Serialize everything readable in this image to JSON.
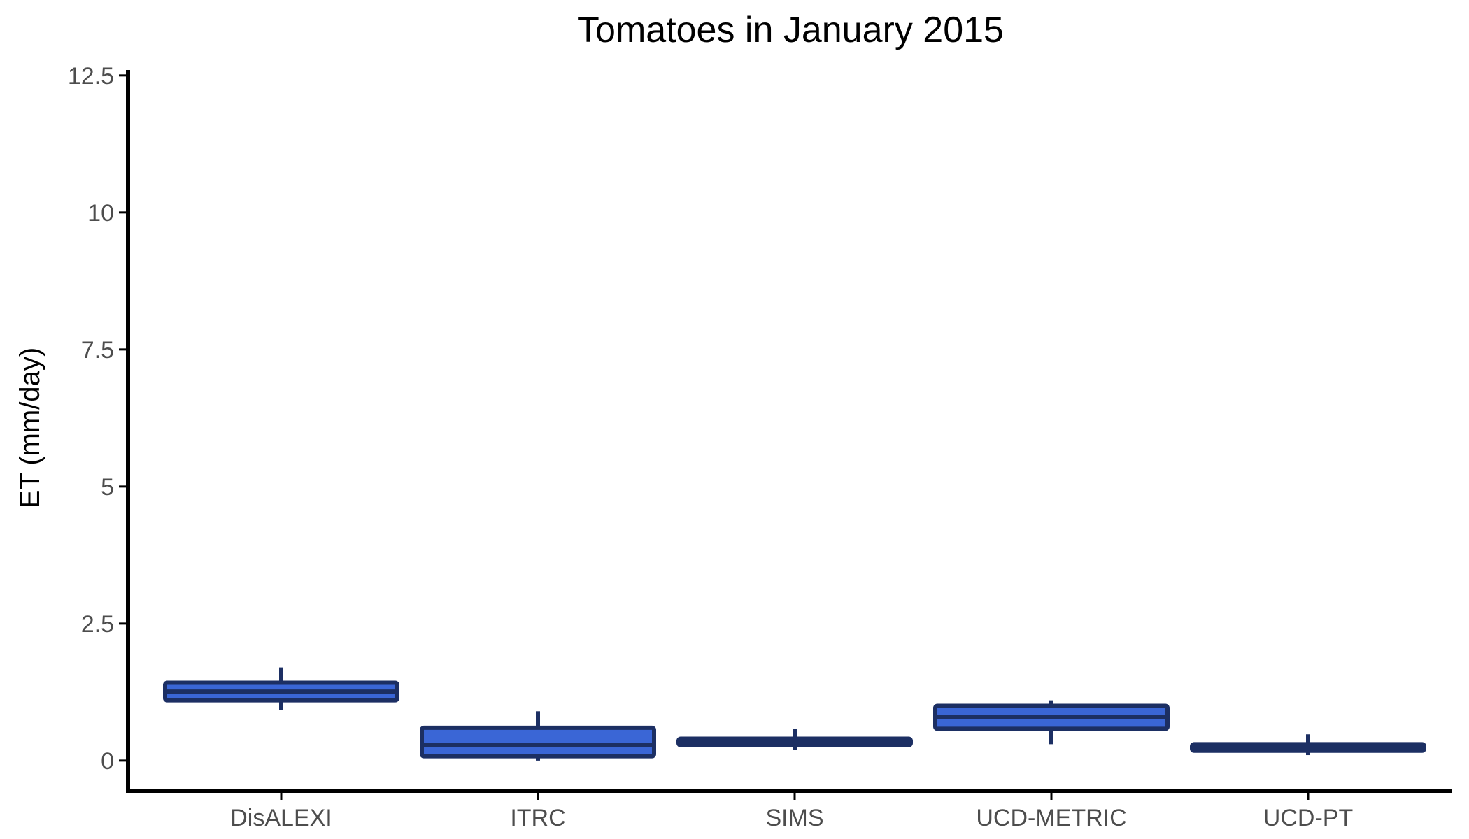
{
  "chart_data": {
    "type": "boxplot",
    "title": "Tomatoes in January 2015",
    "xlabel": "",
    "ylabel": "ET (mm/day)",
    "ylim": [
      -0.55,
      12.6
    ],
    "yticks": [
      0,
      2.5,
      5,
      7.5,
      10,
      12.5
    ],
    "ytick_labels": [
      "0",
      "2.5",
      "5",
      "7.5",
      "10",
      "12.5"
    ],
    "grid": false,
    "categories": [
      "DisALEXI",
      "ITRC",
      "SIMS",
      "UCD-METRIC",
      "UCD-PT"
    ],
    "boxes": [
      {
        "category": "DisALEXI",
        "whisker_low": 0.92,
        "q1": 1.1,
        "median": 1.26,
        "q3": 1.42,
        "whisker_high": 1.7
      },
      {
        "category": "ITRC",
        "whisker_low": 0.0,
        "q1": 0.08,
        "median": 0.28,
        "q3": 0.6,
        "whisker_high": 0.9
      },
      {
        "category": "SIMS",
        "whisker_low": 0.2,
        "q1": 0.28,
        "median": 0.34,
        "q3": 0.4,
        "whisker_high": 0.58
      },
      {
        "category": "UCD-METRIC",
        "whisker_low": 0.3,
        "q1": 0.58,
        "median": 0.8,
        "q3": 1.0,
        "whisker_high": 1.1
      },
      {
        "category": "UCD-PT",
        "whisker_low": 0.1,
        "q1": 0.18,
        "median": 0.24,
        "q3": 0.3,
        "whisker_high": 0.48
      }
    ],
    "colors": {
      "box_fill": "#3a66d6",
      "box_outline": "#1c2f63",
      "axis": "#000000",
      "tick_text": "#4d4d4d"
    }
  }
}
